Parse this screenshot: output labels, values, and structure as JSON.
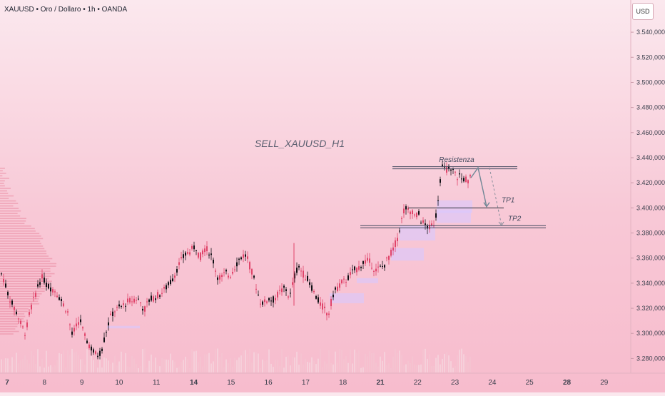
{
  "header": {
    "title": "XAUUSD • Oro / Dollaro • 1h • OANDA",
    "currency": "USD"
  },
  "colors": {
    "up": "#0f0f14",
    "down": "#e0446a",
    "annotation": "#444a5e",
    "zone": "#d9c8ff"
  },
  "chart_data": {
    "type": "candlestick",
    "watermark": "SELL_XAUUSD_H1",
    "y_axis": {
      "ticks": [
        3280,
        3300,
        3320,
        3340,
        3360,
        3380,
        3400,
        3420,
        3440,
        3460,
        3480,
        3500,
        3520,
        3540
      ],
      "tick_labels": [
        "3.280,000",
        "3.300,000",
        "3.320,000",
        "3.340,000",
        "3.360,000",
        "3.380,000",
        "3.400,000",
        "3.420,000",
        "3.440,000",
        "3.460,000",
        "3.480,000",
        "3.500,000",
        "3.520,000",
        "3.540,000"
      ],
      "range": [
        3270,
        3552
      ]
    },
    "x_axis": {
      "labels": [
        "7",
        "8",
        "9",
        "10",
        "11",
        "14",
        "15",
        "16",
        "17",
        "18",
        "21",
        "22",
        "23",
        "24",
        "25",
        "28",
        "29"
      ],
      "bold_labels": [
        "7",
        "14",
        "21",
        "28"
      ]
    },
    "price_path": [
      [
        0,
        3350
      ],
      [
        6,
        3342
      ],
      [
        12,
        3330
      ],
      [
        18,
        3322
      ],
      [
        24,
        3316
      ],
      [
        30,
        3306
      ],
      [
        36,
        3300
      ],
      [
        42,
        3318
      ],
      [
        48,
        3328
      ],
      [
        54,
        3340
      ],
      [
        60,
        3345
      ],
      [
        66,
        3338
      ],
      [
        72,
        3336
      ],
      [
        78,
        3334
      ],
      [
        84,
        3328
      ],
      [
        90,
        3322
      ],
      [
        96,
        3316
      ],
      [
        100,
        3298
      ],
      [
        106,
        3304
      ],
      [
        112,
        3312
      ],
      [
        118,
        3298
      ],
      [
        124,
        3292
      ],
      [
        130,
        3286
      ],
      [
        136,
        3282
      ],
      [
        142,
        3286
      ],
      [
        148,
        3300
      ],
      [
        154,
        3312
      ],
      [
        160,
        3318
      ],
      [
        166,
        3320
      ],
      [
        172,
        3322
      ],
      [
        178,
        3325
      ],
      [
        184,
        3326
      ],
      [
        190,
        3328
      ],
      [
        196,
        3326
      ],
      [
        202,
        3318
      ],
      [
        208,
        3326
      ],
      [
        214,
        3328
      ],
      [
        220,
        3330
      ],
      [
        226,
        3332
      ],
      [
        232,
        3336
      ],
      [
        238,
        3340
      ],
      [
        244,
        3346
      ],
      [
        250,
        3354
      ],
      [
        256,
        3360
      ],
      [
        262,
        3364
      ],
      [
        268,
        3366
      ],
      [
        274,
        3370
      ],
      [
        280,
        3360
      ],
      [
        286,
        3368
      ],
      [
        292,
        3366
      ],
      [
        298,
        3360
      ],
      [
        304,
        3346
      ],
      [
        310,
        3344
      ],
      [
        316,
        3348
      ],
      [
        322,
        3346
      ],
      [
        328,
        3352
      ],
      [
        334,
        3358
      ],
      [
        340,
        3362
      ],
      [
        346,
        3362
      ],
      [
        352,
        3350
      ],
      [
        358,
        3340
      ],
      [
        364,
        3326
      ],
      [
        370,
        3324
      ],
      [
        376,
        3328
      ],
      [
        382,
        3326
      ],
      [
        388,
        3330
      ],
      [
        394,
        3334
      ],
      [
        400,
        3336
      ],
      [
        406,
        3328
      ],
      [
        412,
        3344
      ],
      [
        418,
        3354
      ],
      [
        424,
        3348
      ],
      [
        430,
        3344
      ],
      [
        436,
        3338
      ],
      [
        442,
        3330
      ],
      [
        448,
        3324
      ],
      [
        454,
        3320
      ],
      [
        460,
        3314
      ],
      [
        466,
        3330
      ],
      [
        472,
        3336
      ],
      [
        478,
        3340
      ],
      [
        484,
        3342
      ],
      [
        490,
        3346
      ],
      [
        496,
        3350
      ],
      [
        502,
        3352
      ],
      [
        508,
        3356
      ],
      [
        514,
        3358
      ],
      [
        520,
        3356
      ],
      [
        526,
        3350
      ],
      [
        532,
        3352
      ],
      [
        538,
        3354
      ],
      [
        544,
        3360
      ],
      [
        550,
        3366
      ],
      [
        556,
        3374
      ],
      [
        562,
        3388
      ],
      [
        566,
        3398
      ],
      [
        570,
        3400
      ],
      [
        574,
        3394
      ],
      [
        578,
        3398
      ],
      [
        582,
        3392
      ],
      [
        586,
        3396
      ],
      [
        590,
        3390
      ],
      [
        596,
        3386
      ],
      [
        602,
        3384
      ],
      [
        608,
        3388
      ],
      [
        612,
        3396
      ],
      [
        616,
        3420
      ],
      [
        620,
        3432
      ],
      [
        624,
        3430
      ],
      [
        628,
        3432
      ],
      [
        632,
        3428
      ],
      [
        636,
        3430
      ],
      [
        640,
        3424
      ],
      [
        644,
        3426
      ],
      [
        648,
        3422
      ],
      [
        652,
        3424
      ],
      [
        656,
        3420
      ],
      [
        660,
        3426
      ]
    ],
    "levels": [
      {
        "name": "Resistenza",
        "price": 3432
      },
      {
        "name": "TP1",
        "price": 3400
      },
      {
        "name": "TP2",
        "price": 3385
      }
    ],
    "x_range": [
      0,
      884
    ]
  }
}
